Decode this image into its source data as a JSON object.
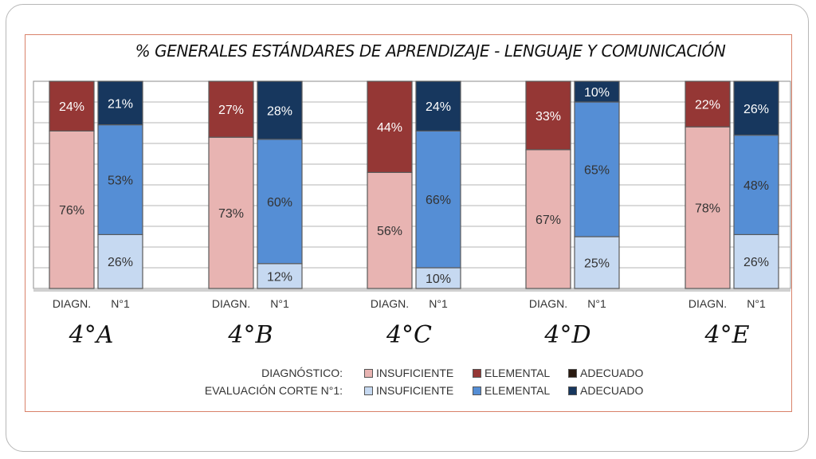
{
  "chart_data": {
    "type": "bar",
    "stacked": true,
    "title": "% GENERALES ESTÁNDARES DE APRENDIZAJE - LENGUAJE Y COMUNICACIÓN",
    "ylim": [
      0,
      100
    ],
    "bar_labels": [
      "DIAGN.",
      "N°1"
    ],
    "groups": [
      {
        "label": "4°A",
        "diagnostico": [
          76,
          24,
          0
        ],
        "corte1": [
          26,
          53,
          21
        ]
      },
      {
        "label": "4°B",
        "diagnostico": [
          73,
          27,
          0
        ],
        "corte1": [
          12,
          60,
          28
        ]
      },
      {
        "label": "4°C",
        "diagnostico": [
          56,
          44,
          0
        ],
        "corte1": [
          10,
          66,
          24
        ]
      },
      {
        "label": "4°D",
        "diagnostico": [
          67,
          33,
          0
        ],
        "corte1": [
          25,
          65,
          10
        ]
      },
      {
        "label": "4°E",
        "diagnostico": [
          78,
          22,
          0
        ],
        "corte1": [
          26,
          48,
          26
        ]
      }
    ],
    "legend": {
      "position": "bottom",
      "rows": [
        {
          "label": "DIAGNÓSTICO:",
          "items": [
            "INSUFICIENTE",
            "ELEMENTAL",
            "ADECUADO"
          ],
          "colors": [
            "#e8b4b2",
            "#953735",
            "#2a1a10"
          ]
        },
        {
          "label": "EVALUACIÓN CORTE N°1:",
          "items": [
            "INSUFICIENTE",
            "ELEMENTAL",
            "ADECUADO"
          ],
          "colors": [
            "#c6d9f1",
            "#558ed5",
            "#17375e"
          ]
        }
      ]
    },
    "grid": true
  }
}
